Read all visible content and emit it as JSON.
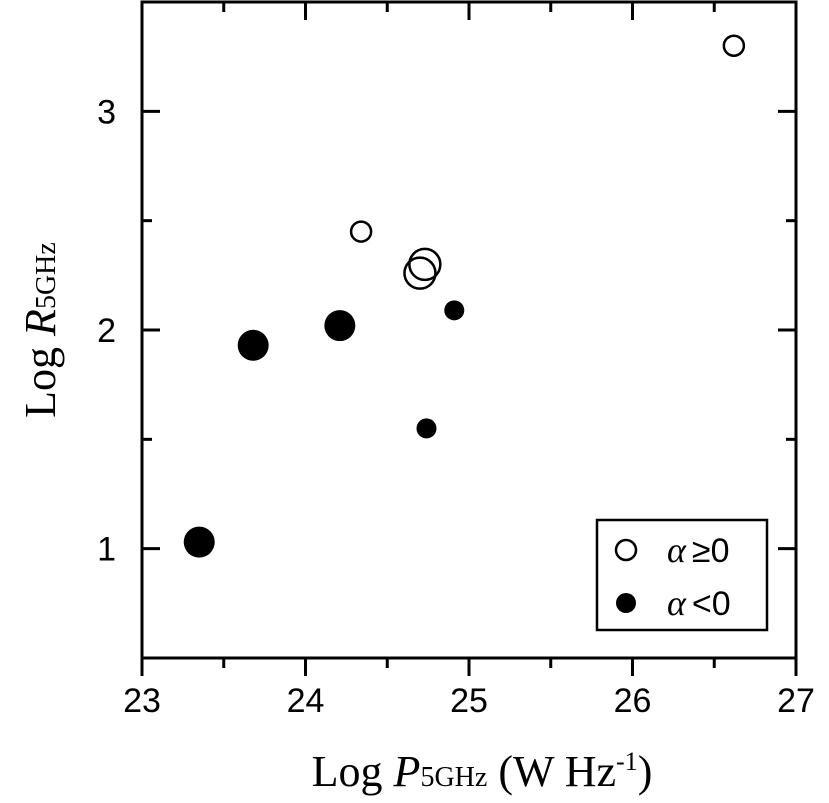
{
  "chart_data": {
    "type": "scatter",
    "xlabel": {
      "prefix": "Log ",
      "symbol": "P",
      "subscript": "5GHz",
      "unit_prefix": " (W Hz",
      "unit_sup": "-1",
      "unit_suffix": ")"
    },
    "ylabel": {
      "prefix": "Log ",
      "symbol": "R",
      "subscript": "5GHz"
    },
    "xlim": [
      23,
      27
    ],
    "ylim": [
      0.5,
      3.5
    ],
    "xticks": [
      23,
      24,
      25,
      26,
      27
    ],
    "yticks": [
      1,
      2,
      3
    ],
    "xtick_labels": [
      "23",
      "24",
      "25",
      "26",
      "27"
    ],
    "ytick_labels": [
      "1",
      "2",
      "3"
    ],
    "legend_position": "bottom-right",
    "series": [
      {
        "name": "α ≥0",
        "legend_symbol": "α",
        "legend_relation": "≥0",
        "marker": "open-circle",
        "points": [
          {
            "x": 24.34,
            "y": 2.45,
            "size": "small"
          },
          {
            "x": 24.73,
            "y": 2.3,
            "size": "large"
          },
          {
            "x": 24.7,
            "y": 2.26,
            "size": "large"
          },
          {
            "x": 26.62,
            "y": 3.3,
            "size": "small"
          }
        ]
      },
      {
        "name": "α <0",
        "legend_symbol": "α",
        "legend_relation": "<0",
        "marker": "filled-circle",
        "points": [
          {
            "x": 23.35,
            "y": 1.03,
            "size": "large"
          },
          {
            "x": 23.68,
            "y": 1.93,
            "size": "large"
          },
          {
            "x": 24.21,
            "y": 2.02,
            "size": "large"
          },
          {
            "x": 24.91,
            "y": 2.09,
            "size": "small"
          },
          {
            "x": 24.74,
            "y": 1.55,
            "size": "small"
          }
        ]
      }
    ]
  }
}
